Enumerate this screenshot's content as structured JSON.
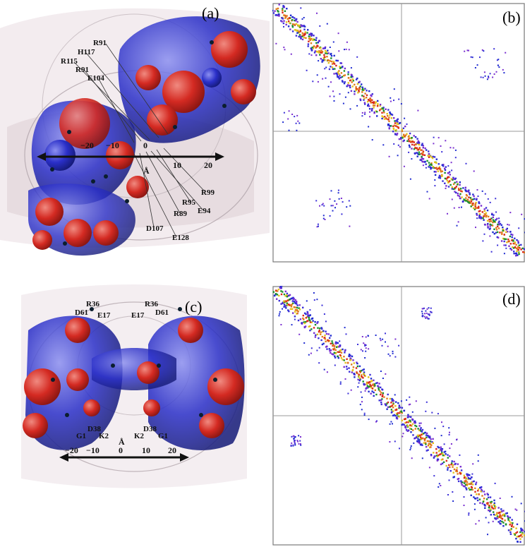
{
  "panels": {
    "a": {
      "label": "(a)",
      "residues_top": [
        "R91",
        "H117",
        "R115",
        "R91",
        "E104"
      ],
      "residues_bottom": [
        "R99",
        "R95",
        "E94",
        "R89",
        "D107",
        "E128"
      ],
      "axis": {
        "ticks": [
          "−20",
          "−10",
          "0",
          "10",
          "20"
        ],
        "unit": "Å"
      }
    },
    "b": {
      "label": "(b)"
    },
    "c": {
      "label": "(c)",
      "residues_top": [
        "R36",
        "D61",
        "E17",
        "E17",
        "R36",
        "D61"
      ],
      "residues_bottom": [
        "D38",
        "G1",
        "K2",
        "K2",
        "D38",
        "G1"
      ],
      "axis": {
        "ticks": [
          "−20",
          "−10",
          "0",
          "10",
          "20"
        ],
        "unit": "Å"
      }
    },
    "d": {
      "label": "(d)"
    }
  },
  "colors": {
    "positive": "#2a2fc8",
    "negative": "#d42a22",
    "membrane": "#c9b8c0",
    "matrix_frame": "#7a7a7a"
  }
}
